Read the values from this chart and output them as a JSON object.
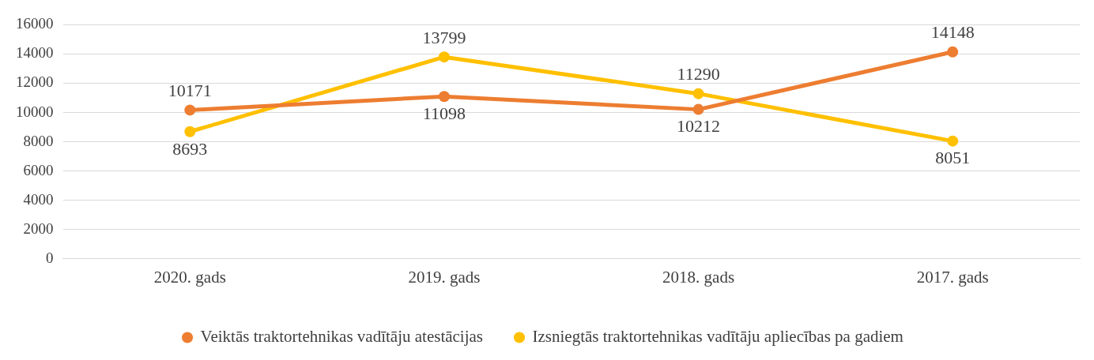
{
  "chart_data": {
    "type": "line",
    "categories": [
      "2020. gads",
      "2019. gads",
      "2018. gads",
      "2017. gads"
    ],
    "series": [
      {
        "name": "Veiktās traktortehnikas vadītāju atestācijas",
        "color": "#ed7d31",
        "values": [
          10171,
          11098,
          10212,
          14148
        ]
      },
      {
        "name": "Izsniegtās traktortehnikas vadītāju apliecības pa gadiem",
        "color": "#ffc000",
        "values": [
          8693,
          13799,
          11290,
          8051
        ]
      }
    ],
    "ylim": [
      0,
      16000
    ],
    "yticks": [
      0,
      2000,
      4000,
      6000,
      8000,
      10000,
      12000,
      14000,
      16000
    ],
    "grid": "y",
    "legend": "bottom",
    "marker": "circle",
    "line_style": "solid",
    "data_labels": true
  }
}
